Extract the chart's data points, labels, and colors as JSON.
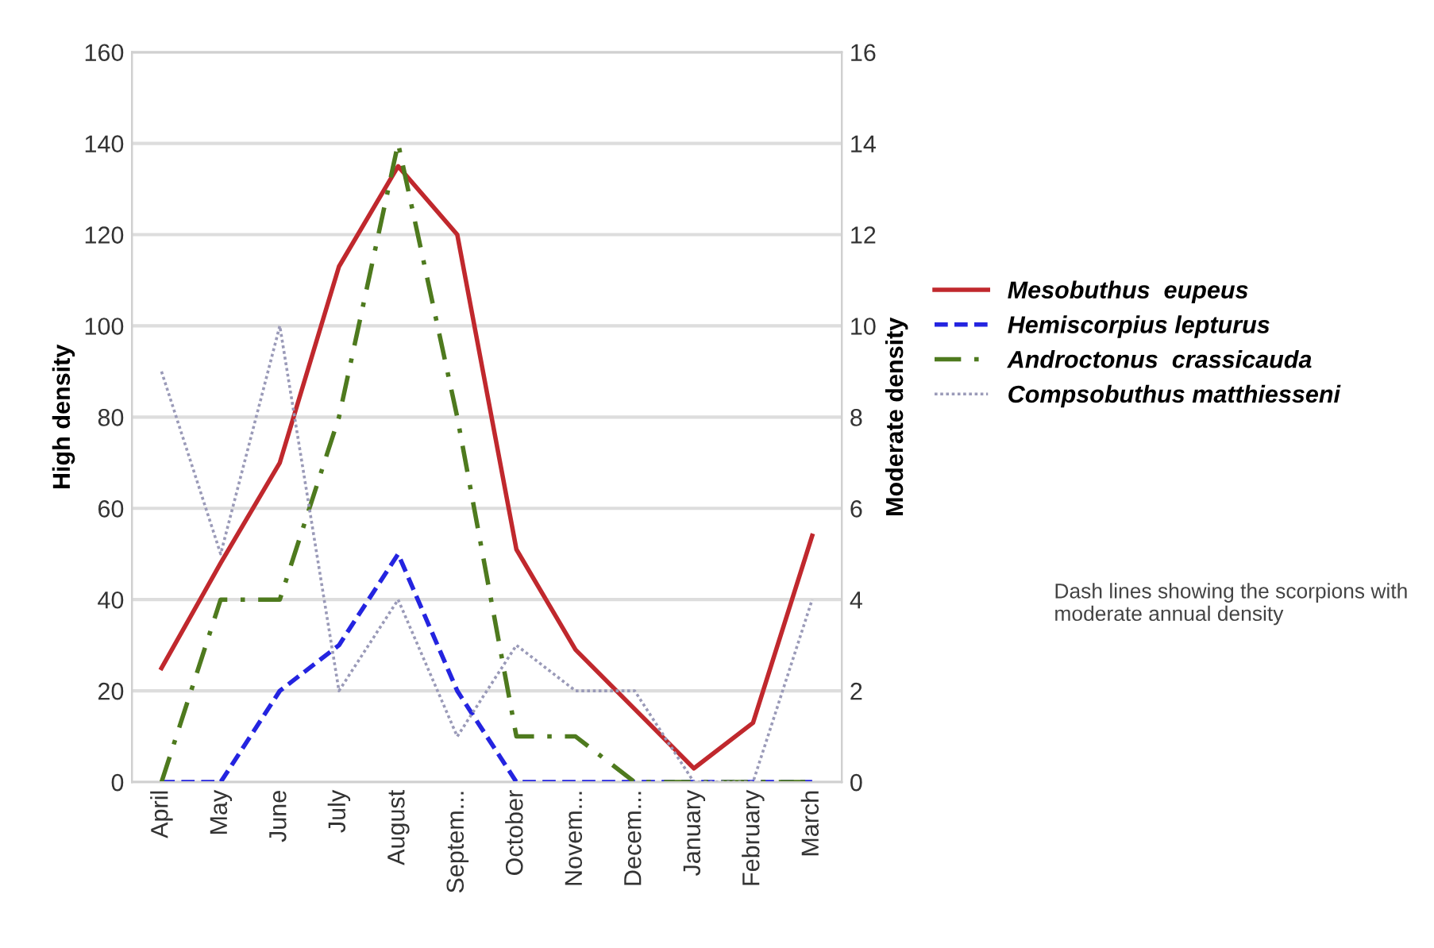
{
  "chart_data": {
    "type": "line",
    "ylabel": "High density",
    "y2label": "Moderate density",
    "categories": [
      "April",
      "May",
      "June",
      "July",
      "August",
      "Septem...",
      "October",
      "Novem...",
      "Decem...",
      "January",
      "February",
      "March"
    ],
    "series": [
      {
        "name": "Mesobuthus  eupeus",
        "color": "#c0282d",
        "line_style": "solid",
        "values": [
          25,
          48,
          70,
          113,
          135,
          120,
          51,
          29,
          16,
          3,
          13,
          54
        ]
      },
      {
        "name": "Hemiscorpius lepturus",
        "color": "#2424e0",
        "line_style": "dashed",
        "axis": "y2",
        "values": [
          0,
          0,
          2,
          3,
          5,
          2,
          0,
          0,
          0,
          0,
          0,
          0
        ]
      },
      {
        "name": "Androctonus  crassicauda",
        "color": "#4e7a1e",
        "line_style": "dashdot",
        "axis": "y2",
        "values": [
          0,
          4,
          4,
          8,
          14,
          8,
          1,
          1,
          0,
          0,
          0,
          0
        ]
      },
      {
        "name": "Compsobuthus matthiesseni",
        "color": "#9a9ab8",
        "line_style": "dotted",
        "axis": "y2",
        "values": [
          9,
          5,
          10,
          2,
          4,
          1,
          3,
          2,
          2,
          0,
          0,
          4
        ]
      }
    ],
    "ylim": [
      0,
      160
    ],
    "yticks": [
      0,
      20,
      40,
      60,
      80,
      100,
      120,
      140,
      160
    ],
    "y2lim": [
      0,
      16
    ],
    "y2ticks": [
      0,
      2,
      4,
      6,
      8,
      10,
      12,
      14,
      16
    ],
    "grid": "y",
    "legend": "right",
    "annotations": [
      "Dash lines showing the scorpions with moderate annual density"
    ]
  }
}
